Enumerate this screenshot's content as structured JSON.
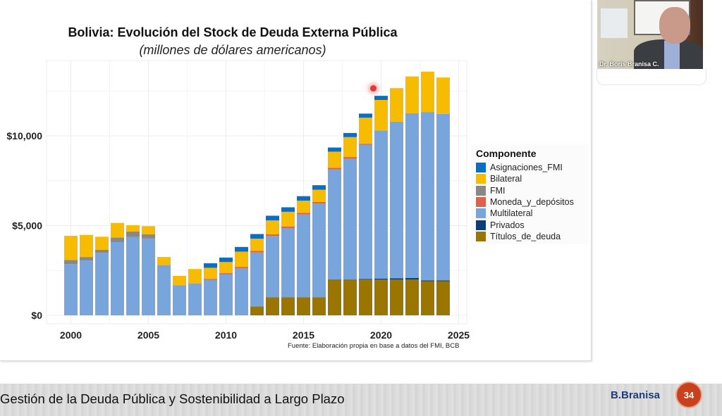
{
  "slide": {
    "footer_text": "Gestión de la Deuda Pública y Sostenibilidad a Largo Plazo",
    "brand": "B.Branisa",
    "page_number": "34"
  },
  "video": {
    "participant_name": "Dr. Boris Branisa C."
  },
  "chart_data": {
    "type": "bar",
    "stacked": true,
    "title": "Bolivia: Evolución del Stock de Deuda Externa Pública",
    "subtitle": "(millones de dólares americanos)",
    "xlabel": "",
    "ylabel": "",
    "ylim": [
      0,
      14200
    ],
    "xlim": [
      1998.5,
      2025.5
    ],
    "y_ticks": [
      0,
      5000,
      10000
    ],
    "y_tick_labels": [
      "$0",
      "$5,000",
      "$10,000"
    ],
    "x_ticks": [
      2000,
      2005,
      2010,
      2015,
      2020,
      2025
    ],
    "x_tick_labels": [
      "2000",
      "2005",
      "2010",
      "2015",
      "2020",
      "2025"
    ],
    "grid": true,
    "legend_title": "Componente",
    "legend_position": "right",
    "source": "Fuente: Elaboración propia en base a datos del FMI, BCB",
    "categories": [
      2000,
      2001,
      2002,
      2003,
      2004,
      2005,
      2006,
      2007,
      2008,
      2009,
      2010,
      2011,
      2012,
      2013,
      2014,
      2015,
      2016,
      2017,
      2018,
      2019,
      2020,
      2021,
      2022,
      2023,
      2024
    ],
    "series": [
      {
        "name": "Títulos_de_deuda",
        "color": "#9a7600",
        "values": [
          0,
          0,
          0,
          0,
          0,
          0,
          0,
          0,
          0,
          0,
          0,
          0,
          500,
          1000,
          1000,
          1000,
          1000,
          2000,
          2000,
          2000,
          2000,
          2000,
          2000,
          1900,
          1900
        ]
      },
      {
        "name": "Privados",
        "color": "#0c3d77",
        "values": [
          0,
          0,
          0,
          0,
          0,
          0,
          0,
          0,
          0,
          0,
          0,
          0,
          0,
          0,
          0,
          0,
          0,
          0,
          0,
          30,
          50,
          60,
          80,
          50,
          50
        ]
      },
      {
        "name": "Multilateral",
        "color": "#77a5dc",
        "values": [
          2850,
          3050,
          3480,
          4080,
          4370,
          4280,
          2800,
          1680,
          1780,
          1980,
          2280,
          2620,
          3000,
          3420,
          3850,
          4620,
          5230,
          6130,
          6730,
          7480,
          8250,
          8730,
          9180,
          9380,
          9270
        ]
      },
      {
        "name": "Moneda_y_depósitos",
        "color": "#e0604a",
        "values": [
          0,
          0,
          0,
          0,
          0,
          0,
          0,
          0,
          0,
          50,
          70,
          80,
          90,
          90,
          90,
          90,
          90,
          90,
          90,
          50,
          0,
          0,
          0,
          0,
          0
        ]
      },
      {
        "name": "FMI",
        "color": "#888888",
        "values": [
          230,
          200,
          170,
          250,
          300,
          240,
          0,
          0,
          0,
          0,
          0,
          0,
          0,
          0,
          0,
          0,
          0,
          0,
          0,
          0,
          0,
          0,
          0,
          0,
          0
        ]
      },
      {
        "name": "Bilateral",
        "color": "#f7bb00",
        "values": [
          1350,
          1230,
          730,
          820,
          350,
          450,
          450,
          520,
          800,
          620,
          620,
          850,
          680,
          780,
          830,
          680,
          680,
          900,
          1110,
          1450,
          1700,
          1870,
          2050,
          2250,
          2030
        ]
      },
      {
        "name": "Asignaciones_FMI",
        "color": "#0a6ec4",
        "values": [
          0,
          0,
          0,
          0,
          0,
          0,
          0,
          0,
          0,
          250,
          250,
          260,
          260,
          260,
          250,
          250,
          250,
          230,
          230,
          230,
          230,
          0,
          0,
          0,
          0
        ]
      }
    ],
    "legend_order": [
      "Asignaciones_FMI",
      "Bilateral",
      "FMI",
      "Moneda_y_depósitos",
      "Multilateral",
      "Privados",
      "Títulos_de_deuda"
    ]
  }
}
